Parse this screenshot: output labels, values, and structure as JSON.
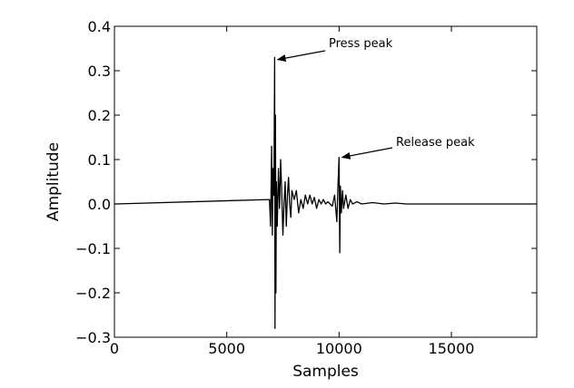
{
  "chart_data": {
    "type": "line",
    "title": "",
    "xlabel": "Samples",
    "ylabel": "Amplitude",
    "xlim": [
      0,
      18800
    ],
    "ylim": [
      -0.3,
      0.4
    ],
    "x_ticks": [
      0,
      5000,
      10000,
      15000
    ],
    "x_tick_labels": [
      "0",
      "5000",
      "10000",
      "15000"
    ],
    "y_ticks": [
      -0.3,
      -0.2,
      -0.1,
      0.0,
      0.1,
      0.2,
      0.3,
      0.4
    ],
    "y_tick_labels": [
      "−0.3",
      "−0.2",
      "−0.1",
      "0.0",
      "0.1",
      "0.2",
      "0.3",
      "0.4"
    ],
    "grid": false,
    "line_color": "#000000",
    "series": [
      {
        "x": [
          0,
          6900,
          6950,
          7000,
          7030,
          7060,
          7100,
          7130,
          7150,
          7170,
          7190,
          7210,
          7250,
          7300,
          7350,
          7400,
          7450,
          7500,
          7550,
          7600,
          7650,
          7700,
          7750,
          7800,
          7850,
          7900,
          8000,
          8100,
          8200,
          8300,
          8400,
          8500,
          8600,
          8700,
          8800,
          8900,
          9000,
          9100,
          9200,
          9300,
          9400,
          9500,
          9600,
          9700,
          9800,
          9900,
          9950,
          10000,
          10030,
          10060,
          10100,
          10150,
          10200,
          10300,
          10400,
          10500,
          10600,
          10800,
          11000,
          11500,
          12000,
          12500,
          13000,
          18800
        ],
        "y": [
          0.0,
          0.01,
          -0.05,
          0.13,
          -0.07,
          0.08,
          0.02,
          0.33,
          -0.28,
          0.2,
          -0.2,
          0.05,
          -0.05,
          0.08,
          -0.01,
          0.1,
          0.02,
          -0.07,
          0.0,
          0.05,
          -0.05,
          0.02,
          0.06,
          0.0,
          -0.03,
          0.03,
          0.01,
          0.03,
          -0.02,
          0.01,
          -0.01,
          0.02,
          0.0,
          0.02,
          0.0,
          0.015,
          -0.01,
          0.01,
          0.0,
          0.01,
          0.0,
          0.005,
          0.0,
          -0.005,
          0.02,
          -0.04,
          0.04,
          0.105,
          -0.11,
          0.04,
          -0.02,
          0.03,
          -0.01,
          0.02,
          -0.01,
          0.01,
          0.0,
          0.005,
          0.0,
          0.003,
          0.0,
          0.002,
          0.0,
          0.0
        ]
      }
    ],
    "annotations": [
      {
        "text": "Press peak",
        "x": 7180,
        "y": 0.325
      },
      {
        "text": "Release peak",
        "x": 10050,
        "y": 0.105
      }
    ]
  }
}
